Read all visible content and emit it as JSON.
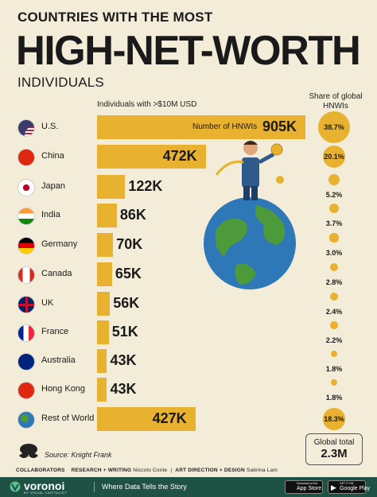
{
  "title": {
    "top": "COUNTRIES WITH THE MOST",
    "main": "HIGH-NET-WORTH",
    "bottom": "INDIVIDUALS"
  },
  "headers": {
    "left": "Individuals with >$10M USD",
    "right": "Share of global HNWIs"
  },
  "chart_data": {
    "type": "bar",
    "categories": [
      "U.S.",
      "China",
      "Japan",
      "India",
      "Germany",
      "Canada",
      "UK",
      "France",
      "Australia",
      "Hong Kong",
      "Rest of World"
    ],
    "values": [
      905000,
      472000,
      122000,
      86000,
      70000,
      65000,
      56000,
      51000,
      43000,
      43000,
      427000
    ],
    "value_labels": [
      "905K",
      "472K",
      "122K",
      "86K",
      "70K",
      "65K",
      "56K",
      "51K",
      "43K",
      "43K",
      "427K"
    ],
    "share": [
      38.7,
      20.1,
      5.2,
      3.7,
      3.0,
      2.8,
      2.4,
      2.2,
      1.8,
      1.8,
      18.3
    ],
    "share_labels": [
      "38.7%",
      "20.1%",
      "5.2%",
      "3.7%",
      "3.0%",
      "2.8%",
      "2.4%",
      "2.2%",
      "1.8%",
      "1.8%",
      "18.3%"
    ],
    "bar_label": "Number of HNWIs",
    "color": "#e8b12f"
  },
  "total": {
    "label": "Global total",
    "value": "2.3M"
  },
  "source": "Source: Knight Frank",
  "credits": {
    "collaborators": "COLLABORATORS",
    "research": "RESEARCH + WRITING",
    "research_name": "Niccolo Conte",
    "art": "ART DIRECTION + DESIGN",
    "art_name": "Sabrina Lam"
  },
  "footer": {
    "brand": "voronoi",
    "brand_sub": "BY VISUAL CAPITALIST",
    "tagline": "Where Data Tells the Story",
    "app_store_top": "Download on the",
    "app_store": "App Store",
    "google_top": "GET IT ON",
    "google": "Google Play",
    "bg": "#1e5244"
  }
}
